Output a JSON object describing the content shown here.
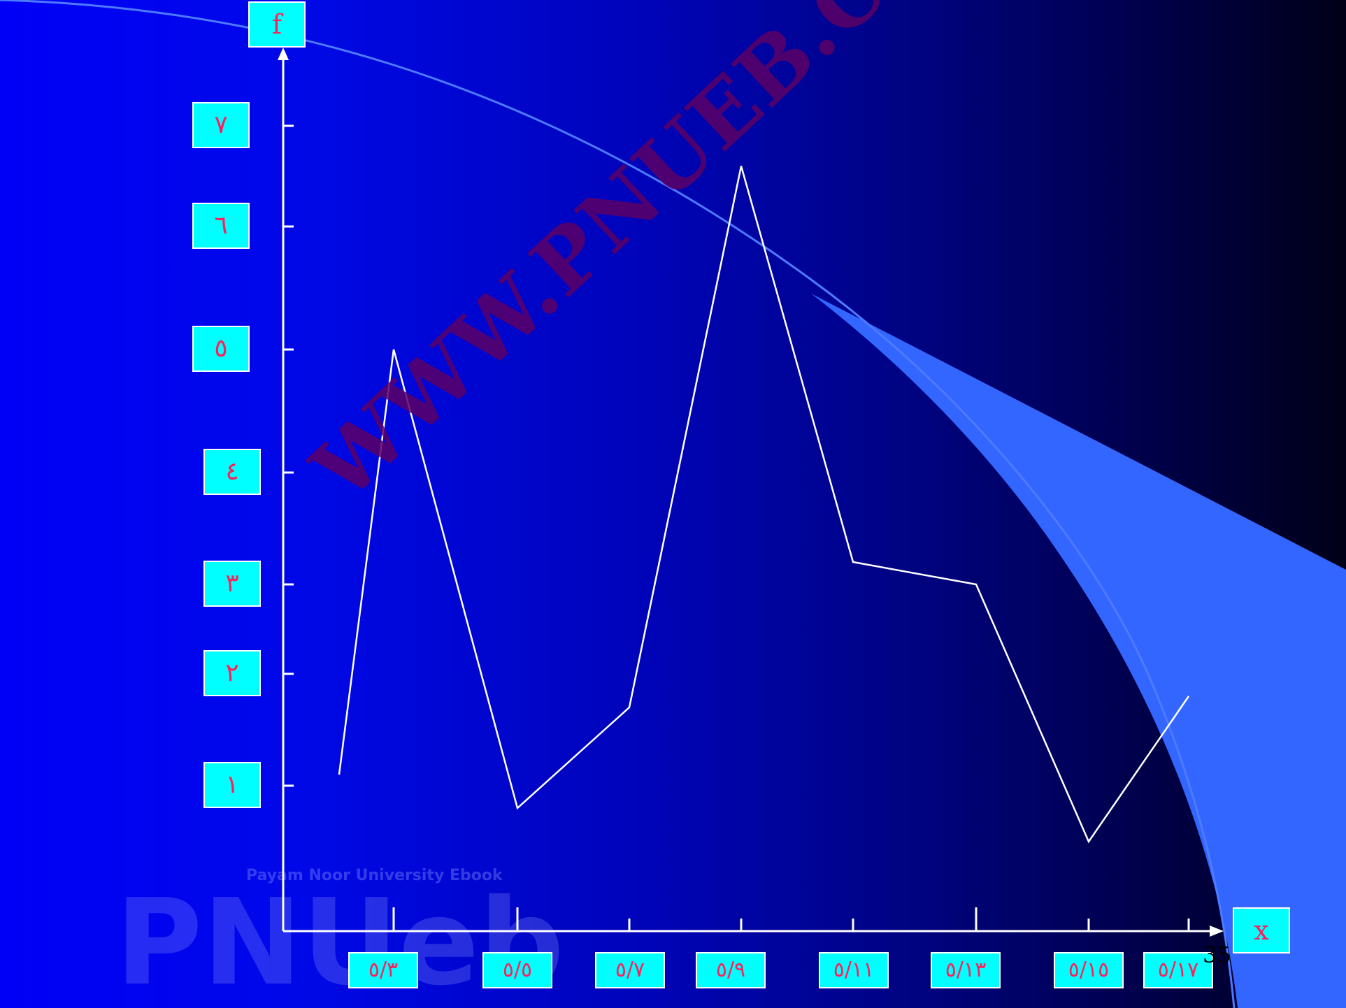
{
  "watermark": "WWW.PNUEB.COM",
  "logo": {
    "text": "PNUeb",
    "caption": "Payam Noor University Ebook"
  },
  "slide_number": "35",
  "colors": {
    "label_fill": "#00ffff",
    "label_text": "#ff1f5a",
    "line": "#ffffff",
    "accent_band": "#3366ff"
  },
  "chart_data": {
    "type": "line",
    "xlabel": "x",
    "ylabel": "f",
    "y_ticks": [
      {
        "value": 1,
        "label": "١"
      },
      {
        "value": 2,
        "label": "٢"
      },
      {
        "value": 3,
        "label": "٣"
      },
      {
        "value": 4,
        "label": "٤"
      },
      {
        "value": 5,
        "label": "٥"
      },
      {
        "value": 6,
        "label": "٦"
      },
      {
        "value": 7,
        "label": "٧"
      }
    ],
    "x_ticks": [
      {
        "value": 5.3,
        "label": "٥/٣"
      },
      {
        "value": 5.5,
        "label": "٥/٥"
      },
      {
        "value": 5.7,
        "label": "٥/٧"
      },
      {
        "value": 5.9,
        "label": "٥/٩"
      },
      {
        "value": 5.11,
        "label": "٥/١١"
      },
      {
        "value": 5.13,
        "label": "٥/١٣"
      },
      {
        "value": 5.15,
        "label": "٥/١٥"
      },
      {
        "value": 5.17,
        "label": "٥/١٧"
      }
    ],
    "series": [
      {
        "points": [
          [
            5.2,
            1.1
          ],
          [
            5.3,
            5.0
          ],
          [
            5.5,
            0.8
          ],
          [
            5.7,
            1.7
          ],
          [
            5.9,
            6.6
          ],
          [
            5.11,
            3.2
          ],
          [
            5.13,
            3.0
          ],
          [
            5.15,
            0.5
          ],
          [
            5.17,
            1.8
          ]
        ]
      }
    ]
  }
}
